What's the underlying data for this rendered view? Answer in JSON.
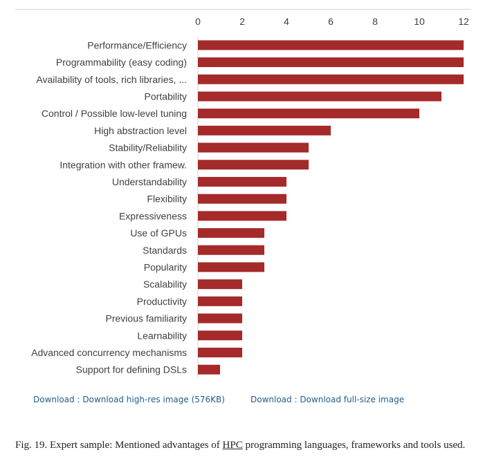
{
  "chart_data": {
    "type": "bar",
    "orientation": "horizontal",
    "categories": [
      "Performance/Efficiency",
      "Programmability (easy coding)",
      "Availability of tools, rich libraries, ...",
      "Portability",
      "Control / Possible low-level tuning",
      "High abstraction level",
      "Stability/Reliability",
      "Integration with other framew.",
      "Understandability",
      "Flexibility",
      "Expressiveness",
      "Use of GPUs",
      "Standards",
      "Popularity",
      "Scalability",
      "Productivity",
      "Previous familiarity",
      "Learnability",
      "Advanced concurrency mechanisms",
      "Support for defining DSLs"
    ],
    "values": [
      12,
      12,
      12,
      11,
      10,
      6,
      5,
      5,
      4,
      4,
      4,
      3,
      3,
      3,
      2,
      2,
      2,
      2,
      2,
      1
    ],
    "xlim": [
      0,
      12
    ],
    "xticks": [
      "0",
      "2",
      "4",
      "6",
      "8",
      "10",
      "12"
    ],
    "x_axis_position": "top",
    "bar_color": "#a52a2a",
    "grid": false
  },
  "links": {
    "hires": "Download : Download high-res image (576KB)",
    "fullsize": "Download : Download full-size image"
  },
  "caption": {
    "before": "Fig. 19. Expert sample: Mentioned advantages of ",
    "hpc": "HPC",
    "after": " programming languages, frameworks and tools used."
  }
}
